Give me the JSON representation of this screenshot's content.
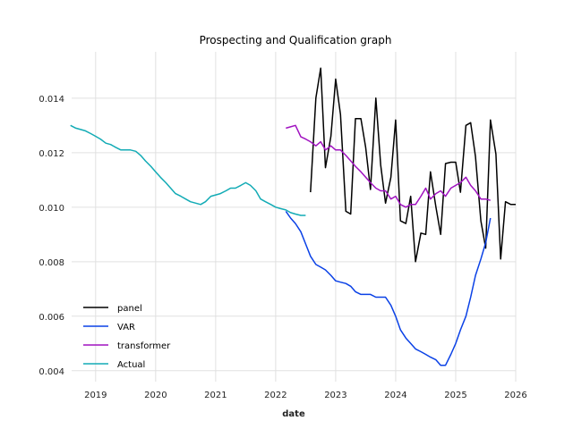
{
  "chart_data": {
    "type": "line",
    "title": "Prospecting and Qualification graph",
    "xlabel": "date",
    "ylabel": "",
    "xlim": [
      2018.6,
      2026.0
    ],
    "ylim": [
      0.0036,
      0.0157
    ],
    "x_ticks": [
      2019,
      2020,
      2021,
      2022,
      2023,
      2024,
      2025,
      2026
    ],
    "x_tick_labels": [
      "2019",
      "2020",
      "2021",
      "2022",
      "2023",
      "2024",
      "2025",
      "2026"
    ],
    "y_ticks": [
      0.004,
      0.006,
      0.008,
      0.01,
      0.012,
      0.014
    ],
    "y_tick_labels": [
      "0.004",
      "0.006",
      "0.008",
      "0.010",
      "0.012",
      "0.014"
    ],
    "grid": true,
    "legend_position": "lower-left",
    "series": [
      {
        "name": "panel",
        "color": "#000000",
        "x": [
          2022.58,
          2022.67,
          2022.75,
          2022.83,
          2022.92,
          2023.0,
          2023.08,
          2023.17,
          2023.25,
          2023.33,
          2023.42,
          2023.5,
          2023.58,
          2023.67,
          2023.75,
          2023.83,
          2023.92,
          2024.0,
          2024.08,
          2024.17,
          2024.25,
          2024.33,
          2024.42,
          2024.5,
          2024.58,
          2024.67,
          2024.75,
          2024.83,
          2024.92,
          2025.0,
          2025.08,
          2025.17,
          2025.25,
          2025.33,
          2025.42,
          2025.5,
          2025.58,
          2025.67,
          2025.75,
          2025.83,
          2025.92,
          2026.0
        ],
        "y": [
          0.01055,
          0.014,
          0.0151,
          0.01145,
          0.0126,
          0.0147,
          0.0134,
          0.00985,
          0.00975,
          0.01325,
          0.01325,
          0.0122,
          0.01065,
          0.014,
          0.01155,
          0.01015,
          0.0111,
          0.0132,
          0.0095,
          0.0094,
          0.0104,
          0.008,
          0.00905,
          0.009,
          0.0113,
          0.01,
          0.009,
          0.0116,
          0.01165,
          0.01165,
          0.01055,
          0.013,
          0.0131,
          0.01185,
          0.0095,
          0.0085,
          0.0132,
          0.01195,
          0.0081,
          0.0102,
          0.0101,
          0.0101
        ]
      },
      {
        "name": "VAR",
        "color": "#0a41e6",
        "x": [
          2022.17,
          2022.25,
          2022.33,
          2022.42,
          2022.5,
          2022.58,
          2022.67,
          2022.75,
          2022.83,
          2022.92,
          2023.0,
          2023.08,
          2023.17,
          2023.25,
          2023.33,
          2023.42,
          2023.5,
          2023.58,
          2023.67,
          2023.75,
          2023.83,
          2023.92,
          2024.0,
          2024.08,
          2024.17,
          2024.25,
          2024.33,
          2024.42,
          2024.5,
          2024.58,
          2024.67,
          2024.75,
          2024.83,
          2024.92,
          2025.0,
          2025.08,
          2025.17,
          2025.25,
          2025.33,
          2025.42,
          2025.5,
          2025.58
        ],
        "y": [
          0.00985,
          0.0096,
          0.0094,
          0.0091,
          0.00865,
          0.0082,
          0.0079,
          0.0078,
          0.0077,
          0.0075,
          0.0073,
          0.00725,
          0.0072,
          0.0071,
          0.0069,
          0.0068,
          0.0068,
          0.0068,
          0.0067,
          0.0067,
          0.0067,
          0.0064,
          0.006,
          0.0055,
          0.0052,
          0.005,
          0.0048,
          0.0047,
          0.0046,
          0.0045,
          0.0044,
          0.0042,
          0.0042,
          0.0046,
          0.005,
          0.0055,
          0.006,
          0.0067,
          0.0075,
          0.0081,
          0.0087,
          0.0096
        ]
      },
      {
        "name": "transformer",
        "color": "#a012c0",
        "x": [
          2022.17,
          2022.25,
          2022.33,
          2022.42,
          2022.5,
          2022.58,
          2022.67,
          2022.75,
          2022.83,
          2022.92,
          2023.0,
          2023.08,
          2023.17,
          2023.25,
          2023.33,
          2023.42,
          2023.5,
          2023.58,
          2023.67,
          2023.75,
          2023.83,
          2023.92,
          2024.0,
          2024.08,
          2024.17,
          2024.25,
          2024.33,
          2024.42,
          2024.5,
          2024.58,
          2024.67,
          2024.75,
          2024.83,
          2024.92,
          2025.0,
          2025.08,
          2025.17,
          2025.25,
          2025.33,
          2025.42,
          2025.5,
          2025.58
        ],
        "y": [
          0.0129,
          0.01295,
          0.013,
          0.01258,
          0.0125,
          0.0124,
          0.01225,
          0.0124,
          0.0121,
          0.01225,
          0.0121,
          0.0121,
          0.0119,
          0.0117,
          0.0115,
          0.0113,
          0.0111,
          0.0109,
          0.0107,
          0.0106,
          0.0106,
          0.0103,
          0.0104,
          0.0101,
          0.01,
          0.0101,
          0.0101,
          0.0104,
          0.0107,
          0.0103,
          0.0105,
          0.0106,
          0.0104,
          0.0107,
          0.0108,
          0.0109,
          0.0111,
          0.0108,
          0.0106,
          0.0103,
          0.0103,
          0.01025
        ]
      },
      {
        "name": "Actual",
        "color": "#12abb5",
        "x": [
          2018.58,
          2018.67,
          2018.75,
          2018.83,
          2018.92,
          2019.0,
          2019.08,
          2019.17,
          2019.25,
          2019.33,
          2019.42,
          2019.5,
          2019.58,
          2019.67,
          2019.75,
          2019.83,
          2019.92,
          2020.0,
          2020.08,
          2020.17,
          2020.25,
          2020.33,
          2020.42,
          2020.5,
          2020.58,
          2020.67,
          2020.75,
          2020.83,
          2020.92,
          2021.0,
          2021.08,
          2021.17,
          2021.25,
          2021.33,
          2021.42,
          2021.5,
          2021.58,
          2021.67,
          2021.75,
          2021.83,
          2021.92,
          2022.0,
          2022.08,
          2022.17,
          2022.25,
          2022.33,
          2022.42,
          2022.5
        ],
        "y": [
          0.013,
          0.0129,
          0.01285,
          0.0128,
          0.0127,
          0.0126,
          0.0125,
          0.01235,
          0.0123,
          0.0122,
          0.0121,
          0.0121,
          0.0121,
          0.01205,
          0.0119,
          0.0117,
          0.0115,
          0.0113,
          0.0111,
          0.0109,
          0.0107,
          0.0105,
          0.0104,
          0.0103,
          0.0102,
          0.01015,
          0.0101,
          0.0102,
          0.0104,
          0.01045,
          0.0105,
          0.0106,
          0.0107,
          0.0107,
          0.0108,
          0.0109,
          0.0108,
          0.0106,
          0.0103,
          0.0102,
          0.0101,
          0.01,
          0.00995,
          0.0099,
          0.0098,
          0.00975,
          0.0097,
          0.0097
        ]
      }
    ]
  }
}
